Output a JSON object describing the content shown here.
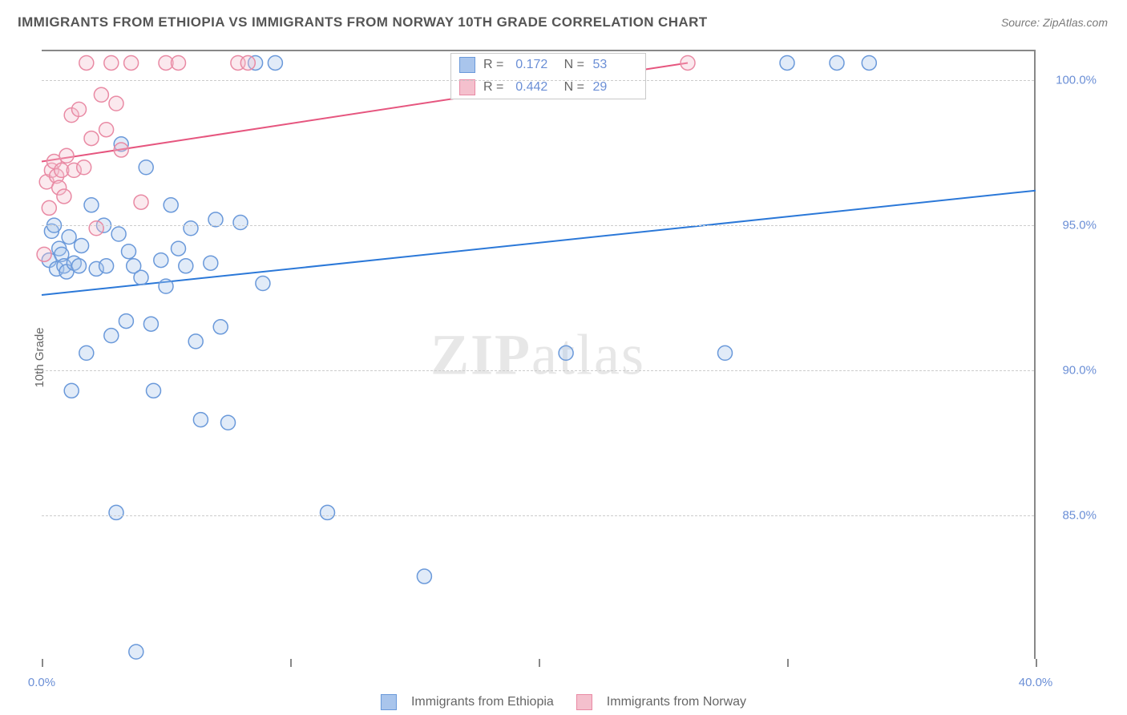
{
  "title": "IMMIGRANTS FROM ETHIOPIA VS IMMIGRANTS FROM NORWAY 10TH GRADE CORRELATION CHART",
  "source": "Source: ZipAtlas.com",
  "ylabel": "10th Grade",
  "watermark_main": "ZIP",
  "watermark_sub": "atlas",
  "chart": {
    "type": "scatter",
    "xlim": [
      0,
      40
    ],
    "ylim": [
      80,
      101
    ],
    "yticks": [
      85,
      90,
      95,
      100
    ],
    "ytick_labels": [
      "85.0%",
      "90.0%",
      "95.0%",
      "100.0%"
    ],
    "xticks": [
      0,
      10,
      20,
      30,
      40
    ],
    "xtick_labels": [
      "0.0%",
      "",
      "",
      "",
      "40.0%"
    ],
    "background_color": "#ffffff",
    "grid_color": "#cccccc",
    "axis_color": "#888888",
    "tick_label_color": "#6b8fd6",
    "marker_radius": 9,
    "marker_stroke_width": 1.5,
    "marker_fill_opacity": 0.35,
    "line_width": 2,
    "series": [
      {
        "name": "Immigrants from Ethiopia",
        "color_fill": "#a9c5ec",
        "color_stroke": "#6a99da",
        "line_color": "#2b78d8",
        "r_value": "0.172",
        "n_value": "53",
        "trend": {
          "x1": 0,
          "y1": 92.6,
          "x2": 40,
          "y2": 96.2
        },
        "points": [
          [
            0.3,
            93.8
          ],
          [
            0.4,
            94.8
          ],
          [
            0.5,
            95.0
          ],
          [
            0.6,
            93.5
          ],
          [
            0.7,
            94.2
          ],
          [
            0.8,
            94.0
          ],
          [
            0.9,
            93.6
          ],
          [
            1.0,
            93.4
          ],
          [
            1.1,
            94.6
          ],
          [
            1.2,
            89.3
          ],
          [
            1.3,
            93.7
          ],
          [
            1.5,
            93.6
          ],
          [
            1.6,
            94.3
          ],
          [
            1.8,
            90.6
          ],
          [
            2.0,
            95.7
          ],
          [
            2.2,
            93.5
          ],
          [
            2.5,
            95.0
          ],
          [
            2.6,
            93.6
          ],
          [
            2.8,
            91.2
          ],
          [
            3.0,
            85.1
          ],
          [
            3.1,
            94.7
          ],
          [
            3.2,
            97.8
          ],
          [
            3.4,
            91.7
          ],
          [
            3.5,
            94.1
          ],
          [
            3.7,
            93.6
          ],
          [
            3.8,
            80.3
          ],
          [
            4.0,
            93.2
          ],
          [
            4.2,
            97.0
          ],
          [
            4.4,
            91.6
          ],
          [
            4.5,
            89.3
          ],
          [
            4.8,
            93.8
          ],
          [
            5.0,
            92.9
          ],
          [
            5.2,
            95.7
          ],
          [
            5.5,
            94.2
          ],
          [
            5.8,
            93.6
          ],
          [
            6.0,
            94.9
          ],
          [
            6.2,
            91.0
          ],
          [
            6.4,
            88.3
          ],
          [
            6.8,
            93.7
          ],
          [
            7.0,
            95.2
          ],
          [
            7.2,
            91.5
          ],
          [
            7.5,
            88.2
          ],
          [
            8.0,
            95.1
          ],
          [
            8.6,
            100.6
          ],
          [
            8.9,
            93.0
          ],
          [
            9.4,
            100.6
          ],
          [
            11.5,
            85.1
          ],
          [
            15.4,
            82.9
          ],
          [
            21.1,
            90.6
          ],
          [
            27.5,
            90.6
          ],
          [
            30.0,
            100.6
          ],
          [
            32.0,
            100.6
          ],
          [
            33.3,
            100.6
          ]
        ]
      },
      {
        "name": "Immigrants from Norway",
        "color_fill": "#f4c0cd",
        "color_stroke": "#e98aa4",
        "line_color": "#e6567f",
        "r_value": "0.442",
        "n_value": "29",
        "trend": {
          "x1": 0,
          "y1": 97.2,
          "x2": 26,
          "y2": 100.6
        },
        "points": [
          [
            0.1,
            94.0
          ],
          [
            0.2,
            96.5
          ],
          [
            0.3,
            95.6
          ],
          [
            0.4,
            96.9
          ],
          [
            0.5,
            97.2
          ],
          [
            0.6,
            96.7
          ],
          [
            0.7,
            96.3
          ],
          [
            0.8,
            96.9
          ],
          [
            0.9,
            96.0
          ],
          [
            1.0,
            97.4
          ],
          [
            1.2,
            98.8
          ],
          [
            1.3,
            96.9
          ],
          [
            1.5,
            99.0
          ],
          [
            1.7,
            97.0
          ],
          [
            1.8,
            100.6
          ],
          [
            2.0,
            98.0
          ],
          [
            2.2,
            94.9
          ],
          [
            2.4,
            99.5
          ],
          [
            2.6,
            98.3
          ],
          [
            2.8,
            100.6
          ],
          [
            3.0,
            99.2
          ],
          [
            3.2,
            97.6
          ],
          [
            3.6,
            100.6
          ],
          [
            4.0,
            95.8
          ],
          [
            5.0,
            100.6
          ],
          [
            5.5,
            100.6
          ],
          [
            7.9,
            100.6
          ],
          [
            8.3,
            100.6
          ],
          [
            26.0,
            100.6
          ]
        ]
      }
    ]
  },
  "stats_legend": {
    "r_label": "R  =",
    "n_label": "N  ="
  },
  "x_legend": [
    {
      "label": "Immigrants from Ethiopia",
      "fill": "#a9c5ec",
      "stroke": "#6a99da"
    },
    {
      "label": "Immigrants from Norway",
      "fill": "#f4c0cd",
      "stroke": "#e98aa4"
    }
  ]
}
